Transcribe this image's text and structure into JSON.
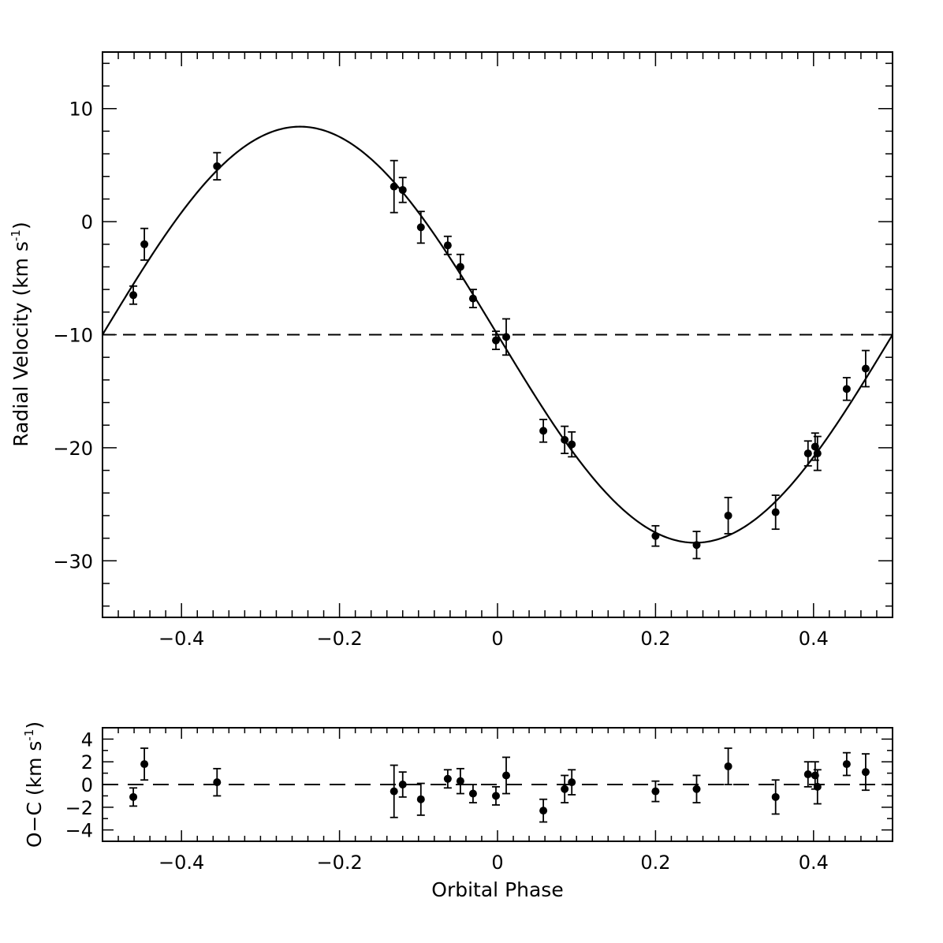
{
  "chart_data": [
    {
      "type": "scatter",
      "panel": "radial-velocity",
      "xlabel": "",
      "ylabel": "Radial Velocity (km s",
      "ylabel_sup": "-1",
      "ylabel_close": ")",
      "xlim": [
        -0.5,
        0.5
      ],
      "ylim": [
        -35,
        15
      ],
      "xticks": [
        -0.4,
        -0.2,
        0,
        0.2,
        0.4
      ],
      "xtick_labels": [
        "−0.4",
        "−0.2",
        "0",
        "0.2",
        "0.4"
      ],
      "yticks": [
        10,
        0,
        -10,
        -20,
        -30
      ],
      "ytick_labels": [
        "10",
        "0",
        "−10",
        "−20",
        "−30"
      ],
      "model": {
        "type": "sine",
        "gamma": -10.0,
        "K": 18.4,
        "phase_of_max": -0.25
      },
      "reference_line": {
        "y": -10.0,
        "style": "dashed"
      },
      "points": [
        {
          "x": -0.461,
          "y": -6.5,
          "err": 0.8
        },
        {
          "x": -0.447,
          "y": -2.0,
          "err": 1.4
        },
        {
          "x": -0.355,
          "y": 4.9,
          "err": 1.2
        },
        {
          "x": -0.131,
          "y": 3.1,
          "err": 2.3
        },
        {
          "x": -0.12,
          "y": 2.8,
          "err": 1.1
        },
        {
          "x": -0.097,
          "y": -0.5,
          "err": 1.4
        },
        {
          "x": -0.063,
          "y": -2.1,
          "err": 0.8
        },
        {
          "x": -0.047,
          "y": -4.0,
          "err": 1.1
        },
        {
          "x": -0.031,
          "y": -6.8,
          "err": 0.8
        },
        {
          "x": -0.002,
          "y": -10.5,
          "err": 0.8
        },
        {
          "x": 0.011,
          "y": -10.2,
          "err": 1.6
        },
        {
          "x": 0.058,
          "y": -18.5,
          "err": 1.0
        },
        {
          "x": 0.085,
          "y": -19.3,
          "err": 1.2
        },
        {
          "x": 0.094,
          "y": -19.7,
          "err": 1.1
        },
        {
          "x": 0.2,
          "y": -27.8,
          "err": 0.9
        },
        {
          "x": 0.252,
          "y": -28.6,
          "err": 1.2
        },
        {
          "x": 0.292,
          "y": -26.0,
          "err": 1.6
        },
        {
          "x": 0.352,
          "y": -25.7,
          "err": 1.5
        },
        {
          "x": 0.393,
          "y": -20.5,
          "err": 1.1
        },
        {
          "x": 0.402,
          "y": -19.9,
          "err": 1.2
        },
        {
          "x": 0.405,
          "y": -20.5,
          "err": 1.5
        },
        {
          "x": 0.442,
          "y": -14.8,
          "err": 1.0
        },
        {
          "x": 0.466,
          "y": -13.0,
          "err": 1.6
        }
      ]
    },
    {
      "type": "scatter",
      "panel": "residuals",
      "xlabel": "Orbital Phase",
      "ylabel": "O−C (km s",
      "ylabel_sup": "-1",
      "ylabel_close": ")",
      "xlim": [
        -0.5,
        0.5
      ],
      "ylim": [
        -5,
        5
      ],
      "xticks": [
        -0.4,
        -0.2,
        0,
        0.2,
        0.4
      ],
      "xtick_labels": [
        "−0.4",
        "−0.2",
        "0",
        "0.2",
        "0.4"
      ],
      "yticks": [
        4,
        2,
        0,
        -2,
        -4
      ],
      "ytick_labels": [
        "4",
        "2",
        "0",
        "−2",
        "−4"
      ],
      "reference_line": {
        "y": 0,
        "style": "dashed"
      },
      "points": [
        {
          "x": -0.461,
          "y": -1.1,
          "err": 0.8
        },
        {
          "x": -0.447,
          "y": 1.8,
          "err": 1.4
        },
        {
          "x": -0.355,
          "y": 0.2,
          "err": 1.2
        },
        {
          "x": -0.131,
          "y": -0.6,
          "err": 2.3
        },
        {
          "x": -0.12,
          "y": 0.0,
          "err": 1.1
        },
        {
          "x": -0.097,
          "y": -1.3,
          "err": 1.4
        },
        {
          "x": -0.063,
          "y": 0.5,
          "err": 0.8
        },
        {
          "x": -0.047,
          "y": 0.3,
          "err": 1.1
        },
        {
          "x": -0.031,
          "y": -0.8,
          "err": 0.8
        },
        {
          "x": -0.002,
          "y": -1.0,
          "err": 0.8
        },
        {
          "x": 0.011,
          "y": 0.8,
          "err": 1.6
        },
        {
          "x": 0.058,
          "y": -2.3,
          "err": 1.0
        },
        {
          "x": 0.085,
          "y": -0.4,
          "err": 1.2
        },
        {
          "x": 0.094,
          "y": 0.2,
          "err": 1.1
        },
        {
          "x": 0.2,
          "y": -0.6,
          "err": 0.9
        },
        {
          "x": 0.252,
          "y": -0.4,
          "err": 1.2
        },
        {
          "x": 0.292,
          "y": 1.6,
          "err": 1.6
        },
        {
          "x": 0.352,
          "y": -1.1,
          "err": 1.5
        },
        {
          "x": 0.393,
          "y": 0.9,
          "err": 1.1
        },
        {
          "x": 0.402,
          "y": 0.8,
          "err": 1.2
        },
        {
          "x": 0.405,
          "y": -0.2,
          "err": 1.5
        },
        {
          "x": 0.442,
          "y": 1.8,
          "err": 1.0
        },
        {
          "x": 0.466,
          "y": 1.1,
          "err": 1.6
        }
      ]
    }
  ],
  "colors": {
    "ink": "#000000",
    "background": "#ffffff"
  }
}
